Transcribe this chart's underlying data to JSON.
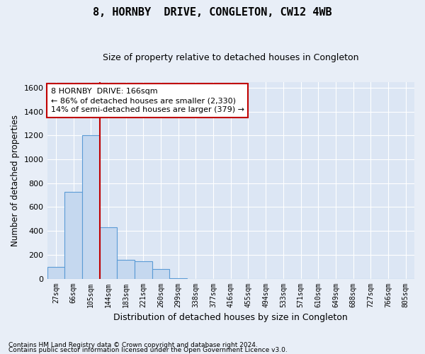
{
  "title": "8, HORNBY  DRIVE, CONGLETON, CW12 4WB",
  "subtitle": "Size of property relative to detached houses in Congleton",
  "xlabel": "Distribution of detached houses by size in Congleton",
  "ylabel": "Number of detached properties",
  "footnote1": "Contains HM Land Registry data © Crown copyright and database right 2024.",
  "footnote2": "Contains public sector information licensed under the Open Government Licence v3.0.",
  "bin_labels": [
    "27sqm",
    "66sqm",
    "105sqm",
    "144sqm",
    "183sqm",
    "221sqm",
    "260sqm",
    "299sqm",
    "338sqm",
    "377sqm",
    "416sqm",
    "455sqm",
    "494sqm",
    "533sqm",
    "571sqm",
    "610sqm",
    "649sqm",
    "688sqm",
    "727sqm",
    "766sqm",
    "805sqm"
  ],
  "bar_values": [
    100,
    730,
    1200,
    430,
    160,
    145,
    80,
    5,
    0,
    0,
    0,
    0,
    0,
    0,
    0,
    0,
    0,
    0,
    0,
    0,
    0
  ],
  "bar_color": "#c5d8ef",
  "bar_edge_color": "#5b9bd5",
  "red_line_x": 2.5,
  "property_label": "8 HORNBY  DRIVE: 166sqm",
  "pct_smaller": 86,
  "count_smaller": 2330,
  "pct_larger": 14,
  "count_larger": 379,
  "annotation_line_color": "#c00000",
  "annotation_box_color": "#c00000",
  "ylim": [
    0,
    1650
  ],
  "yticks": [
    0,
    200,
    400,
    600,
    800,
    1000,
    1200,
    1400,
    1600
  ],
  "bg_color": "#e8eef7",
  "plot_bg_color": "#dce6f4",
  "grid_color": "#c0cce0",
  "title_fontsize": 11,
  "subtitle_fontsize": 9
}
